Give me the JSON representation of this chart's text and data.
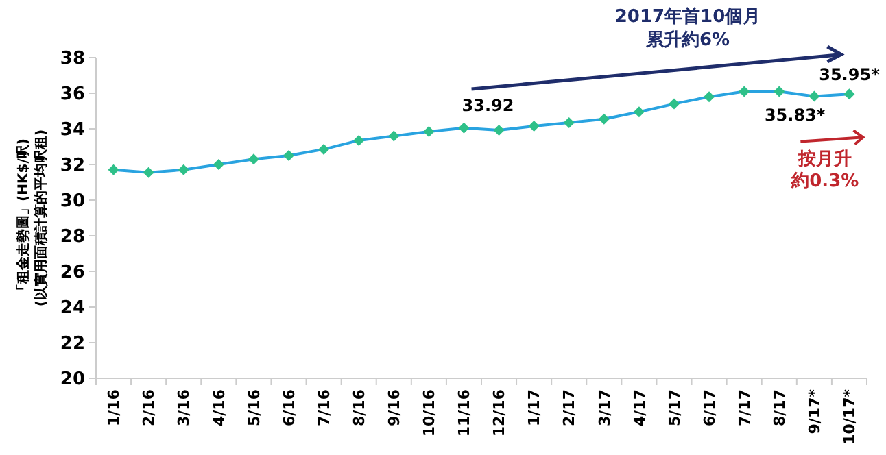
{
  "chart_data": {
    "type": "line",
    "ylabel": "「租金走勢圖」(HK$/呎)\n(以實用面積計算的平均呎租)",
    "categories": [
      "1/16",
      "2/16",
      "3/16",
      "4/16",
      "5/16",
      "6/16",
      "7/16",
      "8/16",
      "9/16",
      "10/16",
      "11/16",
      "12/16",
      "1/17",
      "2/17",
      "3/17",
      "4/17",
      "5/17",
      "6/17",
      "7/17",
      "8/17",
      "9/17*",
      "10/17*"
    ],
    "series": [
      {
        "color": "#29a3e0",
        "values": [
          31.7,
          31.55,
          31.7,
          32.0,
          32.3,
          32.5,
          32.85,
          33.35,
          33.6,
          33.85,
          34.05,
          33.92,
          34.15,
          34.35,
          34.55,
          34.95,
          35.4,
          35.8,
          36.1,
          36.1,
          35.83,
          35.95
        ],
        "colors": [
          "#2ec089",
          "#2ec089",
          "#2ec089",
          "#2ec089",
          "#2ec089",
          "#2ec089",
          "#2ec089",
          "#2ec089",
          "#2ec089",
          "#2ec089",
          "#2ec089",
          "#2ec089",
          "#2ec089",
          "#2ec089",
          "#2ec089",
          "#2ec089",
          "#2ec089",
          "#2ec089",
          "#2ec089",
          "#2ec089",
          "#2ec089",
          "#2ec089"
        ],
        "value_labels": [
          null,
          null,
          null,
          null,
          null,
          null,
          null,
          null,
          null,
          null,
          null,
          "33.92",
          null,
          null,
          null,
          null,
          null,
          null,
          null,
          null,
          "35.83*",
          "35.95*"
        ]
      }
    ],
    "marker": "diamond",
    "ylim": [
      20,
      38
    ],
    "yticks": [
      20,
      22,
      24,
      26,
      28,
      30,
      32,
      34,
      36,
      38
    ],
    "annotations": [
      "2017年首10個月",
      "累升約6%",
      "按月升",
      "約0.3%"
    ]
  }
}
